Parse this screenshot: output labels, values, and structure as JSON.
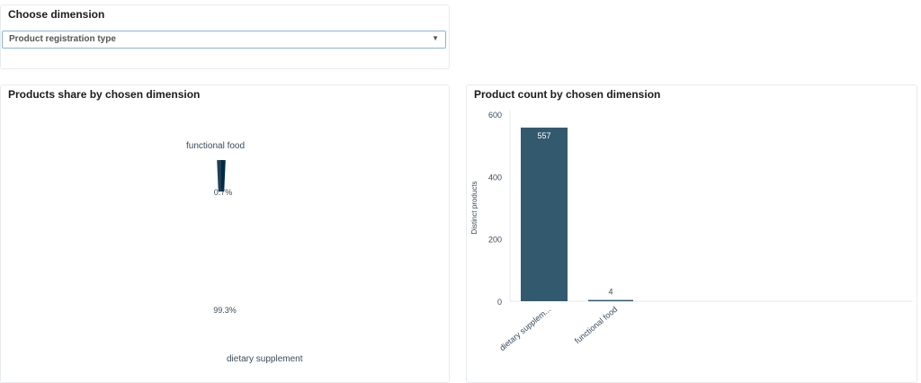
{
  "controls": {
    "title": "Choose dimension",
    "select_value": "Product registration type"
  },
  "chart_data": [
    {
      "type": "pie",
      "title": "Products share by chosen dimension",
      "donut": true,
      "labels": [
        "dietary supplement",
        "functional food"
      ],
      "values": [
        557,
        4
      ],
      "percent_labels": [
        "99.3%",
        "0.7%"
      ],
      "colors": [
        "#002b45",
        "#1f3f55"
      ]
    },
    {
      "type": "bar",
      "title": "Product count by chosen dimension",
      "categories": [
        "dietary supplem...",
        "functional food"
      ],
      "values": [
        557,
        4
      ],
      "value_labels": [
        "557",
        "4"
      ],
      "ylabel": "Distinct products",
      "ylim": [
        0,
        600
      ],
      "yticks": [
        "0",
        "200",
        "400",
        "600"
      ],
      "ytick_values": [
        0,
        200,
        400,
        600
      ],
      "color": "#33596e"
    }
  ]
}
